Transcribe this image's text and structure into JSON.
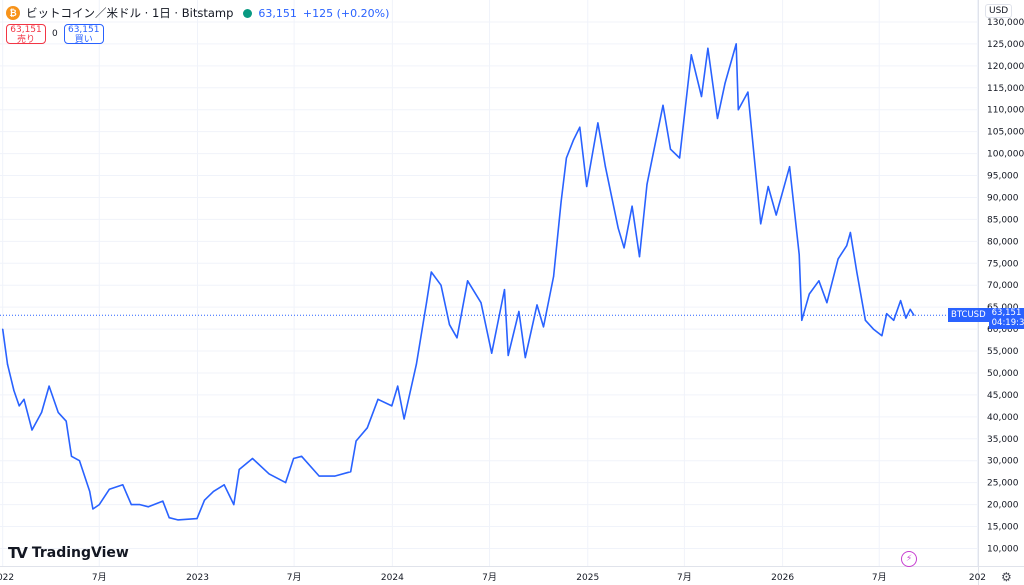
{
  "header": {
    "coin_icon_glyph": "₿",
    "title": "ビットコイン／米ドル · 1日 · Bitstamp",
    "price": "63,151",
    "change": "+125 (+0.20%)"
  },
  "trade": {
    "sell_price": "63,151",
    "sell_label": "売り",
    "spread": "0",
    "buy_price": "63,151",
    "buy_label": "買い"
  },
  "currency": "USD",
  "last_price_tag": {
    "symbol": "BTCUSD",
    "price": "63,151",
    "countdown": "04:19:38"
  },
  "logo": {
    "mark": "TV",
    "text": "TradingView"
  },
  "colors": {
    "line": "#2962ff",
    "sell": "#f23645",
    "buy": "#2962ff",
    "status": "#089981",
    "grid": "#f0f3fa"
  },
  "chart_data": {
    "type": "line",
    "series": [
      {
        "name": "BTCUSD",
        "points": [
          [
            "2022-01-01",
            60000
          ],
          [
            "2022-01-10",
            52000
          ],
          [
            "2022-01-22",
            46000
          ],
          [
            "2022-02-01",
            42500
          ],
          [
            "2022-02-10",
            44000
          ],
          [
            "2022-02-25",
            37000
          ],
          [
            "2022-03-15",
            41000
          ],
          [
            "2022-03-29",
            47000
          ],
          [
            "2022-04-15",
            41000
          ],
          [
            "2022-04-30",
            39000
          ],
          [
            "2022-05-10",
            31000
          ],
          [
            "2022-05-25",
            30000
          ],
          [
            "2022-06-13",
            23000
          ],
          [
            "2022-06-19",
            19000
          ],
          [
            "2022-07-01",
            20000
          ],
          [
            "2022-07-20",
            23500
          ],
          [
            "2022-08-14",
            24500
          ],
          [
            "2022-08-30",
            20000
          ],
          [
            "2022-09-15",
            20000
          ],
          [
            "2022-10-01",
            19500
          ],
          [
            "2022-10-28",
            20800
          ],
          [
            "2022-11-09",
            17000
          ],
          [
            "2022-11-25",
            16500
          ],
          [
            "2022-12-31",
            16800
          ],
          [
            "2023-01-14",
            21000
          ],
          [
            "2023-01-31",
            23000
          ],
          [
            "2023-02-20",
            24500
          ],
          [
            "2023-03-10",
            20000
          ],
          [
            "2023-03-20",
            28000
          ],
          [
            "2023-04-14",
            30500
          ],
          [
            "2023-05-15",
            27000
          ],
          [
            "2023-06-15",
            25000
          ],
          [
            "2023-06-30",
            30500
          ],
          [
            "2023-07-15",
            31000
          ],
          [
            "2023-08-17",
            26500
          ],
          [
            "2023-09-15",
            26500
          ],
          [
            "2023-10-15",
            27500
          ],
          [
            "2023-10-25",
            34500
          ],
          [
            "2023-11-15",
            37500
          ],
          [
            "2023-12-05",
            44000
          ],
          [
            "2023-12-31",
            42500
          ],
          [
            "2024-01-11",
            47000
          ],
          [
            "2024-01-23",
            39500
          ],
          [
            "2024-02-15",
            52000
          ],
          [
            "2024-03-05",
            66000
          ],
          [
            "2024-03-14",
            73000
          ],
          [
            "2024-04-01",
            70000
          ],
          [
            "2024-04-17",
            61000
          ],
          [
            "2024-05-01",
            58000
          ],
          [
            "2024-05-21",
            71000
          ],
          [
            "2024-06-15",
            66000
          ],
          [
            "2024-07-05",
            54500
          ],
          [
            "2024-07-29",
            69000
          ],
          [
            "2024-08-05",
            54000
          ],
          [
            "2024-08-25",
            64000
          ],
          [
            "2024-09-06",
            53500
          ],
          [
            "2024-09-28",
            65500
          ],
          [
            "2024-10-10",
            60500
          ],
          [
            "2024-10-29",
            72000
          ],
          [
            "2024-11-12",
            89000
          ],
          [
            "2024-11-22",
            99000
          ],
          [
            "2024-12-05",
            103000
          ],
          [
            "2024-12-17",
            106000
          ],
          [
            "2024-12-30",
            92500
          ],
          [
            "2025-01-20",
            107000
          ],
          [
            "2025-02-03",
            97000
          ],
          [
            "2025-02-27",
            83000
          ],
          [
            "2025-03-10",
            78500
          ],
          [
            "2025-03-25",
            88000
          ],
          [
            "2025-04-08",
            76500
          ],
          [
            "2025-04-22",
            93000
          ],
          [
            "2025-05-22",
            111000
          ],
          [
            "2025-06-05",
            101000
          ],
          [
            "2025-06-22",
            99000
          ],
          [
            "2025-07-14",
            122500
          ],
          [
            "2025-08-02",
            113000
          ],
          [
            "2025-08-14",
            124000
          ],
          [
            "2025-09-01",
            108000
          ],
          [
            "2025-09-15",
            116000
          ],
          [
            "2025-10-06",
            125000
          ],
          [
            "2025-10-10",
            110000
          ],
          [
            "2025-10-28",
            114000
          ],
          [
            "2025-11-21",
            84000
          ],
          [
            "2025-12-05",
            92500
          ],
          [
            "2025-12-20",
            86000
          ],
          [
            "2026-01-14",
            97000
          ],
          [
            "2026-02-01",
            77000
          ],
          [
            "2026-02-06",
            62000
          ],
          [
            "2026-02-20",
            68000
          ],
          [
            "2026-03-10",
            71000
          ],
          [
            "2026-03-25",
            66000
          ],
          [
            "2026-04-15",
            76000
          ],
          [
            "2026-05-01",
            79000
          ],
          [
            "2026-05-08",
            82000
          ],
          [
            "2026-05-20",
            73000
          ],
          [
            "2026-06-05",
            62000
          ],
          [
            "2026-06-20",
            60000
          ],
          [
            "2026-07-06",
            58500
          ],
          [
            "2026-07-15",
            63500
          ],
          [
            "2026-07-28",
            62000
          ],
          [
            "2026-08-10",
            66500
          ],
          [
            "2026-08-20",
            62500
          ],
          [
            "2026-08-28",
            64500
          ],
          [
            "2026-09-04",
            63151
          ]
        ]
      }
    ],
    "y_ticks": [
      "10,000",
      "15,000",
      "20,000",
      "25,000",
      "30,000",
      "35,000",
      "40,000",
      "45,000",
      "50,000",
      "55,000",
      "60,000",
      "65,000",
      "70,000",
      "75,000",
      "80,000",
      "85,000",
      "90,000",
      "95,000",
      "100,000",
      "105,000",
      "110,000",
      "115,000",
      "120,000",
      "125,000",
      "130,000"
    ],
    "x_ticks": [
      [
        "2022-01-01",
        "2022"
      ],
      [
        "2022-07-01",
        "7月"
      ],
      [
        "2023-01-01",
        "2023"
      ],
      [
        "2023-07-01",
        "7月"
      ],
      [
        "2024-01-01",
        "2024"
      ],
      [
        "2024-07-01",
        "7月"
      ],
      [
        "2025-01-01",
        "2025"
      ],
      [
        "2025-07-01",
        "7月"
      ],
      [
        "2026-01-01",
        "2026"
      ],
      [
        "2026-07-01",
        "7月"
      ],
      [
        "2027-01-01",
        "202"
      ]
    ],
    "ylim": [
      6000,
      135000
    ],
    "x_range": [
      "2021-12-27",
      "2027-01-02"
    ],
    "grid": true,
    "last_price": 63151
  }
}
